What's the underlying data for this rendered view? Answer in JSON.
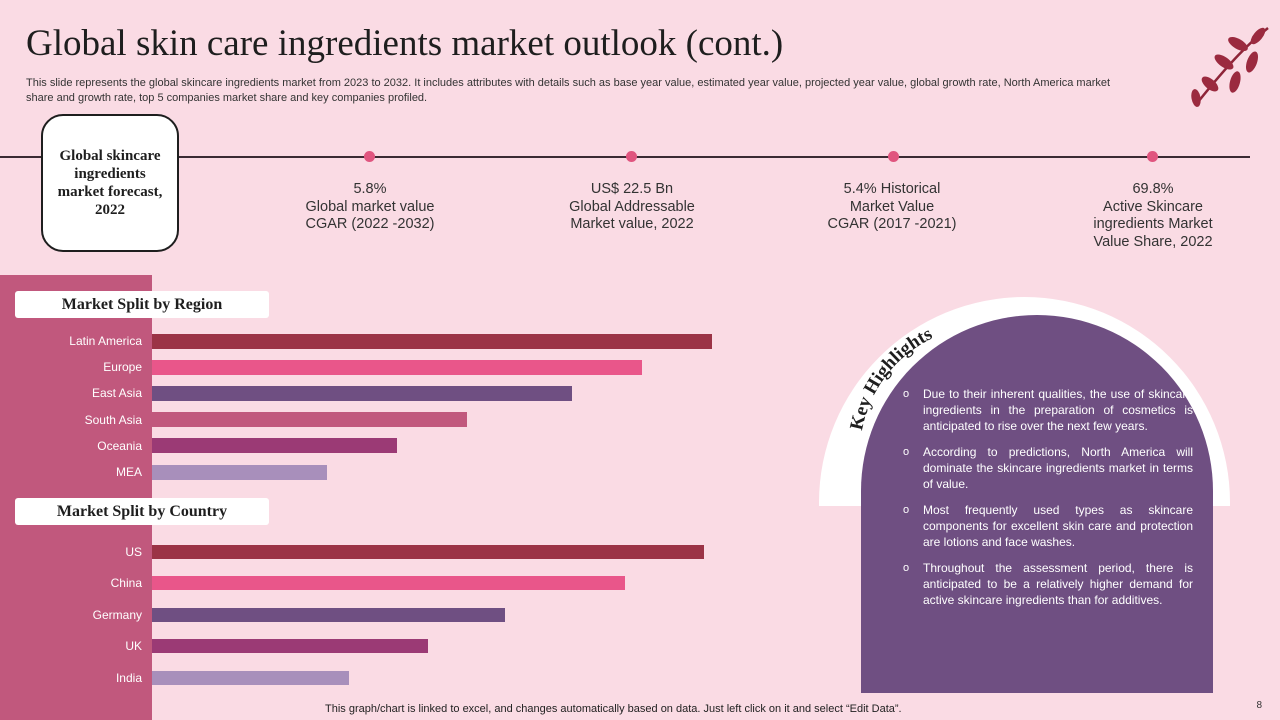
{
  "header": {
    "title": "Global skin care ingredients market outlook (cont.)",
    "subtitle": "This slide represents the global skincare ingredients market from 2023 to 2032. It includes attributes with details such as base year value, estimated year value, projected year value, global growth rate, North America market share and growth rate, top 5 companies market share and key companies profiled."
  },
  "forecast": {
    "label": "Global skincare ingredients market forecast, 2022"
  },
  "stats": [
    {
      "lines": [
        "5.8%",
        "Global market value",
        "CGAR (2022 -2032)"
      ]
    },
    {
      "lines": [
        "US$ 22.5 Bn",
        "Global Addressable",
        "Market value, 2022"
      ]
    },
    {
      "lines": [
        "5.4% Historical",
        "Market Value",
        "CGAR (2017 -2021)"
      ]
    },
    {
      "lines": [
        "69.8%",
        "Active Skincare",
        "ingredients Market",
        "Value Share, 2022"
      ]
    }
  ],
  "key_highlights": {
    "title": "Key Highlights",
    "bullet_symbol": "o",
    "items": [
      "Due to their inherent qualities, the use of skincare ingredients in the preparation of cosmetics is anticipated to rise over the next few years.",
      "According to predictions, North America will dominate the skincare ingredients market in terms of value.",
      "Most frequently used types as skincare components for excellent skin care and protection are lotions and face washes.",
      "Throughout the assessment period, there is anticipated to be a relatively higher demand for active skincare ingredients than for additives."
    ]
  },
  "chart_data": [
    {
      "type": "bar",
      "orientation": "horizontal",
      "title": "Market Split by Region",
      "categories": [
        "Latin America",
        "Europe",
        "East Asia",
        "South Asia",
        "Oceania",
        "MEA"
      ],
      "values": [
        100,
        87.5,
        75,
        56.3,
        43.8,
        31.3
      ],
      "colors": [
        "#9b3346",
        "#e9568a",
        "#6f4f82",
        "#c1587d",
        "#9b3a75",
        "#a88fbb"
      ],
      "xlim": [
        0,
        100
      ]
    },
    {
      "type": "bar",
      "orientation": "horizontal",
      "title": "Market Split by Country",
      "categories": [
        "US",
        "China",
        "Germany",
        "UK",
        "India"
      ],
      "values": [
        98.6,
        84.4,
        63.1,
        49.3,
        35.1
      ],
      "colors": [
        "#9b3346",
        "#e9568a",
        "#6f4f82",
        "#9b3a75",
        "#a88fbb"
      ],
      "xlim": [
        0,
        100
      ]
    }
  ],
  "footer": {
    "note": "This graph/chart is linked to excel, and changes automatically based on data. Just left click on it and select “Edit Data”.",
    "page_number": "8"
  }
}
